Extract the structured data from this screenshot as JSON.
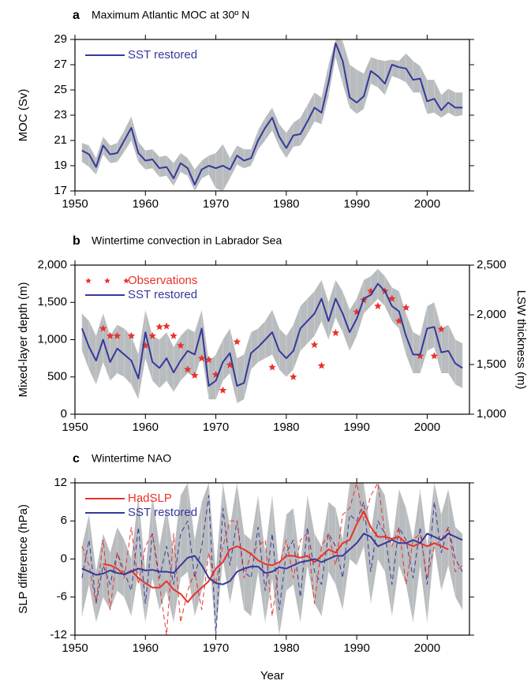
{
  "chart_data": [
    {
      "type": "line",
      "label": "a",
      "title": "Maximum Atlantic MOC at 30º N",
      "ylabel": "MOC (Sv)",
      "x": [
        1951,
        1952,
        1953,
        1954,
        1955,
        1956,
        1957,
        1958,
        1959,
        1960,
        1961,
        1962,
        1963,
        1964,
        1965,
        1966,
        1967,
        1968,
        1969,
        1970,
        1971,
        1972,
        1973,
        1974,
        1975,
        1976,
        1977,
        1978,
        1979,
        1980,
        1981,
        1982,
        1983,
        1984,
        1985,
        1986,
        1987,
        1988,
        1989,
        1990,
        1991,
        1992,
        1993,
        1994,
        1995,
        1996,
        1997,
        1998,
        1999,
        2000,
        2001,
        2002,
        2003,
        2004,
        2005
      ],
      "xlim": [
        1950,
        2006
      ],
      "xticks": [
        1950,
        1960,
        1970,
        1980,
        1990,
        2000
      ],
      "ylim": [
        17,
        29
      ],
      "yticks": [
        17,
        19,
        21,
        23,
        25,
        27,
        29
      ],
      "band": {
        "color": "#b9bcbf",
        "lower": [
          19.3,
          18.9,
          18.3,
          19.9,
          19.2,
          19.3,
          20.1,
          21.0,
          19.3,
          18.7,
          18.8,
          18.1,
          18.2,
          17.4,
          18.5,
          18.2,
          17.0,
          18.0,
          18.3,
          17.2,
          17.0,
          18.0,
          19.1,
          18.8,
          19.0,
          20.3,
          21.0,
          21.8,
          20.5,
          19.6,
          20.5,
          20.6,
          21.5,
          22.5,
          22.3,
          24.5,
          27.6,
          25.5,
          23.6,
          23.1,
          23.5,
          25.5,
          25.2,
          24.6,
          26.1,
          25.9,
          25.6,
          24.8,
          24.8,
          23.1,
          23.2,
          22.8,
          23.2,
          22.9,
          23.0
        ],
        "upper": [
          20.8,
          20.6,
          19.6,
          21.3,
          20.6,
          20.8,
          21.8,
          22.9,
          20.9,
          20.2,
          20.3,
          19.7,
          19.8,
          19.2,
          20.0,
          19.6,
          18.7,
          19.4,
          19.8,
          20.0,
          20.7,
          19.6,
          20.6,
          20.3,
          20.3,
          21.8,
          22.8,
          23.6,
          22.3,
          21.6,
          22.4,
          22.8,
          23.8,
          24.8,
          24.4,
          27.0,
          29.0,
          28.9,
          27.0,
          26.6,
          26.3,
          27.6,
          27.4,
          27.3,
          27.4,
          27.3,
          27.9,
          27.3,
          26.9,
          25.8,
          25.8,
          24.6,
          25.1,
          24.8,
          24.8
        ]
      },
      "series": [
        {
          "name": "SST restored",
          "color": "#35399a",
          "values": [
            20.2,
            19.9,
            18.9,
            20.6,
            19.9,
            20.0,
            21.0,
            22.0,
            20.0,
            19.4,
            19.5,
            18.8,
            18.9,
            18.0,
            19.2,
            18.8,
            17.5,
            18.7,
            19.0,
            18.8,
            19.0,
            18.7,
            19.8,
            19.4,
            19.6,
            21.0,
            22.0,
            22.8,
            21.3,
            20.4,
            21.4,
            21.5,
            22.5,
            23.6,
            23.2,
            25.6,
            28.7,
            27.3,
            24.4,
            24.0,
            24.5,
            26.5,
            26.1,
            25.5,
            27.0,
            26.8,
            26.7,
            25.8,
            25.9,
            24.1,
            24.3,
            23.4,
            24.0,
            23.6,
            23.6
          ]
        }
      ]
    },
    {
      "type": "line",
      "label": "b",
      "title": "Wintertime convection in Labrador Sea",
      "ylabel": "Mixed-layer depth (m)",
      "y2label": "LSW thickness (m)",
      "x": [
        1951,
        1952,
        1953,
        1954,
        1955,
        1956,
        1957,
        1958,
        1959,
        1960,
        1961,
        1962,
        1963,
        1964,
        1965,
        1966,
        1967,
        1968,
        1969,
        1970,
        1971,
        1972,
        1973,
        1974,
        1975,
        1976,
        1977,
        1978,
        1979,
        1980,
        1981,
        1982,
        1983,
        1984,
        1985,
        1986,
        1987,
        1988,
        1989,
        1990,
        1991,
        1992,
        1993,
        1994,
        1995,
        1996,
        1997,
        1998,
        1999,
        2000,
        2001,
        2002,
        2003,
        2004,
        2005
      ],
      "xlim": [
        1950,
        2006
      ],
      "xticks": [
        1950,
        1960,
        1970,
        1980,
        1990,
        2000
      ],
      "ylim": [
        0,
        2000
      ],
      "yticks": [
        0,
        500,
        {
          "value": 1000,
          "label": "1,000"
        },
        {
          "value": 1500,
          "label": "1,500"
        },
        {
          "value": 2000,
          "label": "2,000"
        }
      ],
      "y2lim": [
        1000,
        2500
      ],
      "y2ticks": [
        {
          "value": 1000,
          "label": "1,000"
        },
        {
          "value": 1500,
          "label": "1,500"
        },
        {
          "value": 2000,
          "label": "2,000"
        },
        {
          "value": 2500,
          "label": "2,500"
        }
      ],
      "band": {
        "color": "#b9bcbf",
        "lower": [
          850,
          600,
          400,
          700,
          450,
          550,
          500,
          400,
          200,
          750,
          450,
          350,
          450,
          300,
          450,
          550,
          500,
          800,
          200,
          200,
          450,
          550,
          150,
          200,
          600,
          700,
          750,
          800,
          600,
          500,
          600,
          850,
          950,
          1050,
          1250,
          1000,
          1300,
          1100,
          850,
          1050,
          1350,
          1450,
          1550,
          1450,
          1250,
          1150,
          800,
          550,
          550,
          850,
          900,
          550,
          550,
          400,
          350
        ],
        "upper": [
          1350,
          1250,
          1050,
          1350,
          1050,
          1200,
          1150,
          1050,
          800,
          1400,
          1050,
          1000,
          1100,
          900,
          1050,
          1150,
          1100,
          1400,
          700,
          800,
          1000,
          1150,
          750,
          800,
          1100,
          1150,
          1250,
          1400,
          1150,
          1050,
          1200,
          1450,
          1550,
          1650,
          1800,
          1500,
          1800,
          1650,
          1400,
          1550,
          1800,
          1850,
          1950,
          1850,
          1700,
          1650,
          1350,
          1100,
          1050,
          1450,
          1500,
          1150,
          1200,
          1000,
          950
        ]
      },
      "series": [
        {
          "name": "Observations",
          "type": "scatter",
          "axis": "y2",
          "color": "#e8322b",
          "x": [
            1954,
            1955,
            1956,
            1958,
            1960,
            1961,
            1962,
            1963,
            1964,
            1965,
            1966,
            1967,
            1968,
            1969,
            1970,
            1971,
            1972,
            1973,
            1978,
            1981,
            1984,
            1985,
            1987,
            1990,
            1991,
            1992,
            1993,
            1994,
            1995,
            1996,
            1997,
            1999,
            2001,
            2002
          ],
          "values": [
            1862,
            1788,
            1788,
            1788,
            1690,
            1788,
            1878,
            1885,
            1788,
            1690,
            1450,
            1390,
            1562,
            1548,
            1398,
            1240,
            1495,
            1728,
            1472,
            1375,
            1698,
            1488,
            1818,
            2028,
            2148,
            2238,
            2088,
            2238,
            2162,
            1938,
            2072,
            1585,
            1585,
            1855
          ]
        },
        {
          "name": "SST restored",
          "color": "#35399a",
          "values": [
            1150,
            900,
            720,
            1000,
            700,
            880,
            800,
            720,
            480,
            1100,
            700,
            620,
            750,
            560,
            720,
            850,
            800,
            1150,
            380,
            450,
            700,
            820,
            380,
            420,
            820,
            900,
            1000,
            1100,
            850,
            750,
            850,
            1150,
            1250,
            1350,
            1550,
            1250,
            1550,
            1350,
            1100,
            1280,
            1550,
            1600,
            1750,
            1650,
            1450,
            1380,
            1050,
            800,
            800,
            1150,
            1170,
            830,
            850,
            680,
            620
          ]
        }
      ]
    },
    {
      "type": "line",
      "label": "c",
      "title": "Wintertime NAO",
      "ylabel": "SLP difference (hPa)",
      "xlabel": "Year",
      "x": [
        1951,
        1952,
        1953,
        1954,
        1955,
        1956,
        1957,
        1958,
        1959,
        1960,
        1961,
        1962,
        1963,
        1964,
        1965,
        1966,
        1967,
        1968,
        1969,
        1970,
        1971,
        1972,
        1973,
        1974,
        1975,
        1976,
        1977,
        1978,
        1979,
        1980,
        1981,
        1982,
        1983,
        1984,
        1985,
        1986,
        1987,
        1988,
        1989,
        1990,
        1991,
        1992,
        1993,
        1994,
        1995,
        1996,
        1997,
        1998,
        1999,
        2000,
        2001,
        2002,
        2003,
        2004,
        2005
      ],
      "xlim": [
        1950,
        2006
      ],
      "xticks": [
        1950,
        1960,
        1970,
        1980,
        1990,
        2000
      ],
      "ylim": [
        -12,
        12
      ],
      "yticks": [
        -12,
        -6,
        0,
        6,
        12
      ],
      "band": {
        "color": "#b9bcbf",
        "lower": [
          -9,
          -4,
          -10,
          -6,
          -8,
          -5,
          -6,
          -9,
          -2,
          -10,
          -3,
          -8,
          -5,
          -10,
          -3,
          -2,
          -9,
          -5,
          1,
          -12,
          0,
          -7,
          -1,
          -8,
          -9,
          -2,
          -10,
          -3,
          -12,
          -5,
          -4,
          -10,
          -1,
          -7,
          -9,
          -2,
          -4,
          -8,
          0,
          -1,
          2,
          -7,
          0,
          -2,
          -9,
          -1,
          -4,
          -10,
          -1,
          -10,
          2,
          -5,
          -1,
          -6,
          -8
        ],
        "upper": [
          2,
          7,
          -2,
          4,
          1,
          5,
          3,
          0,
          10,
          -2,
          10,
          2,
          8,
          1,
          10,
          12,
          3,
          9,
          12,
          -2,
          12,
          5,
          12,
          4,
          3,
          10,
          1,
          10,
          -2,
          7,
          8,
          -1,
          10,
          4,
          2,
          9,
          8,
          3,
          12,
          12,
          12,
          4,
          12,
          10,
          2,
          11,
          8,
          3,
          11,
          2,
          12,
          7,
          11,
          5,
          4
        ]
      },
      "series": [
        {
          "color": "#35399a",
          "style": "dashed",
          "values": [
            -3,
            3,
            -7,
            -1,
            -4,
            1,
            -2,
            -5,
            5,
            -7,
            4,
            -3,
            2,
            -4,
            4,
            6,
            -3,
            2,
            10,
            -12,
            8,
            -1,
            6,
            -2,
            -3,
            5,
            -5,
            4,
            -8,
            1,
            3,
            -6,
            5,
            -2,
            -4,
            4,
            2,
            -3,
            7,
            6,
            9,
            -2,
            6,
            4,
            -4,
            5,
            3,
            -3,
            5,
            -4,
            9,
            1,
            5,
            0,
            -2
          ]
        },
        {
          "color": "#e8322b",
          "style": "dashed",
          "values": [
            2,
            -1,
            -7,
            3,
            -8,
            1,
            -3,
            5,
            -4,
            2,
            4,
            -4,
            -12,
            4,
            -10,
            -5,
            -2,
            -8,
            1,
            -4,
            2,
            6,
            6,
            -3,
            1,
            2,
            3,
            -9,
            -1,
            3,
            -3,
            3,
            4,
            -7,
            2,
            4,
            -1,
            7,
            8,
            12,
            6,
            10,
            12,
            4,
            2,
            5,
            -4,
            3,
            4,
            -3,
            2,
            3,
            5,
            -2,
            -1
          ]
        },
        {
          "name": "HadSLP",
          "color": "#e8322b",
          "values": [
            null,
            null,
            null,
            -0.8,
            -1.0,
            -1.5,
            -2.5,
            -1.8,
            -3.0,
            -3.8,
            -4.5,
            -4.5,
            -3.5,
            -4.8,
            -5.5,
            -6.8,
            -5.5,
            -4.5,
            -3.5,
            -1.5,
            -0.5,
            1.5,
            2.0,
            1.5,
            0.8,
            -0.2,
            -0.8,
            -1.0,
            -0.5,
            0.5,
            0.5,
            0.2,
            0.5,
            -0.5,
            0.5,
            1.5,
            1.0,
            2.5,
            3.0,
            5.5,
            7.5,
            5.0,
            3.5,
            3.5,
            3.2,
            3.5,
            2.5,
            2.0,
            2.5,
            2.0,
            2.5,
            2.0,
            1.5,
            null,
            null
          ]
        },
        {
          "name": "SST restored",
          "color": "#35399a",
          "values": [
            -1.5,
            -2.0,
            -2.5,
            -2.3,
            -1.8,
            -2.2,
            -2.4,
            -2.0,
            -1.5,
            -1.8,
            -1.7,
            -2.0,
            -2.0,
            -2.2,
            -1.0,
            0.2,
            0.5,
            -1.0,
            -3.0,
            -3.8,
            -4.0,
            -3.5,
            -2.0,
            -1.5,
            -1.2,
            -1.2,
            -2.2,
            -2.0,
            -1.3,
            -1.5,
            -1.0,
            -0.5,
            -0.3,
            0.0,
            -0.5,
            0.0,
            0.5,
            0.5,
            1.5,
            2.5,
            4.0,
            3.5,
            2.0,
            2.5,
            3.0,
            2.5,
            2.5,
            3.0,
            2.5,
            4.0,
            3.5,
            3.0,
            4.0,
            3.5,
            3.0
          ]
        }
      ]
    }
  ]
}
